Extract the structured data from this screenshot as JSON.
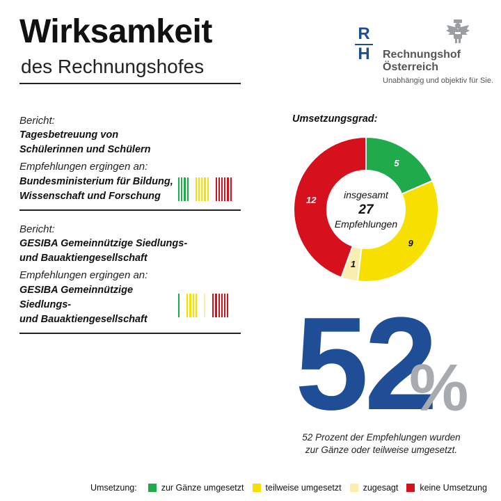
{
  "header": {
    "title": "Wirksamkeit",
    "subtitle": "des Rechnungshofes"
  },
  "logo": {
    "monogram_top": "R",
    "monogram_bottom": "H",
    "name_line1": "Rechnungshof",
    "name_line2": "Österreich",
    "tagline": "Unabhängig und objektiv für Sie.",
    "emblem_icon": "eagle-emblem-icon"
  },
  "reports": [
    {
      "report_label": "Bericht:",
      "report_title_line1": "Tagesbetreuung von",
      "report_title_line2": "Schülerinnen und Schülern",
      "recipient_label": "Empfehlungen ergingen an:",
      "recipient_line1": "Bundesministerium für Bildung,",
      "recipient_line2": "Wissenschaft und Forschung",
      "tally": {
        "green": 4,
        "yellow": 5,
        "beige": 0,
        "red": 6
      }
    },
    {
      "report_label": "Bericht:",
      "report_title_line1": "GESIBA Gemeinnützige Siedlungs-",
      "report_title_line2": "und Bauaktiengesellschaft",
      "recipient_label": "Empfehlungen ergingen an:",
      "recipient_line1": "GESIBA Gemeinnützige Siedlungs-",
      "recipient_line2": "und Bauaktiengesellschaft",
      "tally": {
        "green": 1,
        "yellow": 4,
        "beige": 1,
        "red": 6
      }
    }
  ],
  "chart_data": {
    "type": "pie",
    "title": "Umsetzungsgrad:",
    "categories": [
      "zur Gänze umgesetzt",
      "teilweise umgesetzt",
      "zugesagt",
      "keine Umsetzung"
    ],
    "values": [
      5,
      9,
      1,
      12
    ],
    "colors": [
      "#1faa4b",
      "#f7df00",
      "#faedb0",
      "#d6101c"
    ],
    "center_label_line1": "insgesamt",
    "center_total": "27",
    "center_label_line2": "Empfehlungen",
    "donut": true
  },
  "summary": {
    "big_number": "52",
    "percent_sign": "%",
    "caption_line1": "52 Prozent der Empfehlungen wurden",
    "caption_line2": "zur Gänze oder teilweise umgesetzt."
  },
  "legend": {
    "heading": "Umsetzung:",
    "items": [
      "zur Gänze umgesetzt",
      "teilweise umgesetzt",
      "zugesagt",
      "keine Umsetzung"
    ]
  },
  "colors": {
    "brand_blue": "#1f4e96",
    "percent_grey": "#a7abb0",
    "green": "#1faa4b",
    "yellow": "#f7df00",
    "beige": "#faedb0",
    "red": "#d6101c"
  }
}
